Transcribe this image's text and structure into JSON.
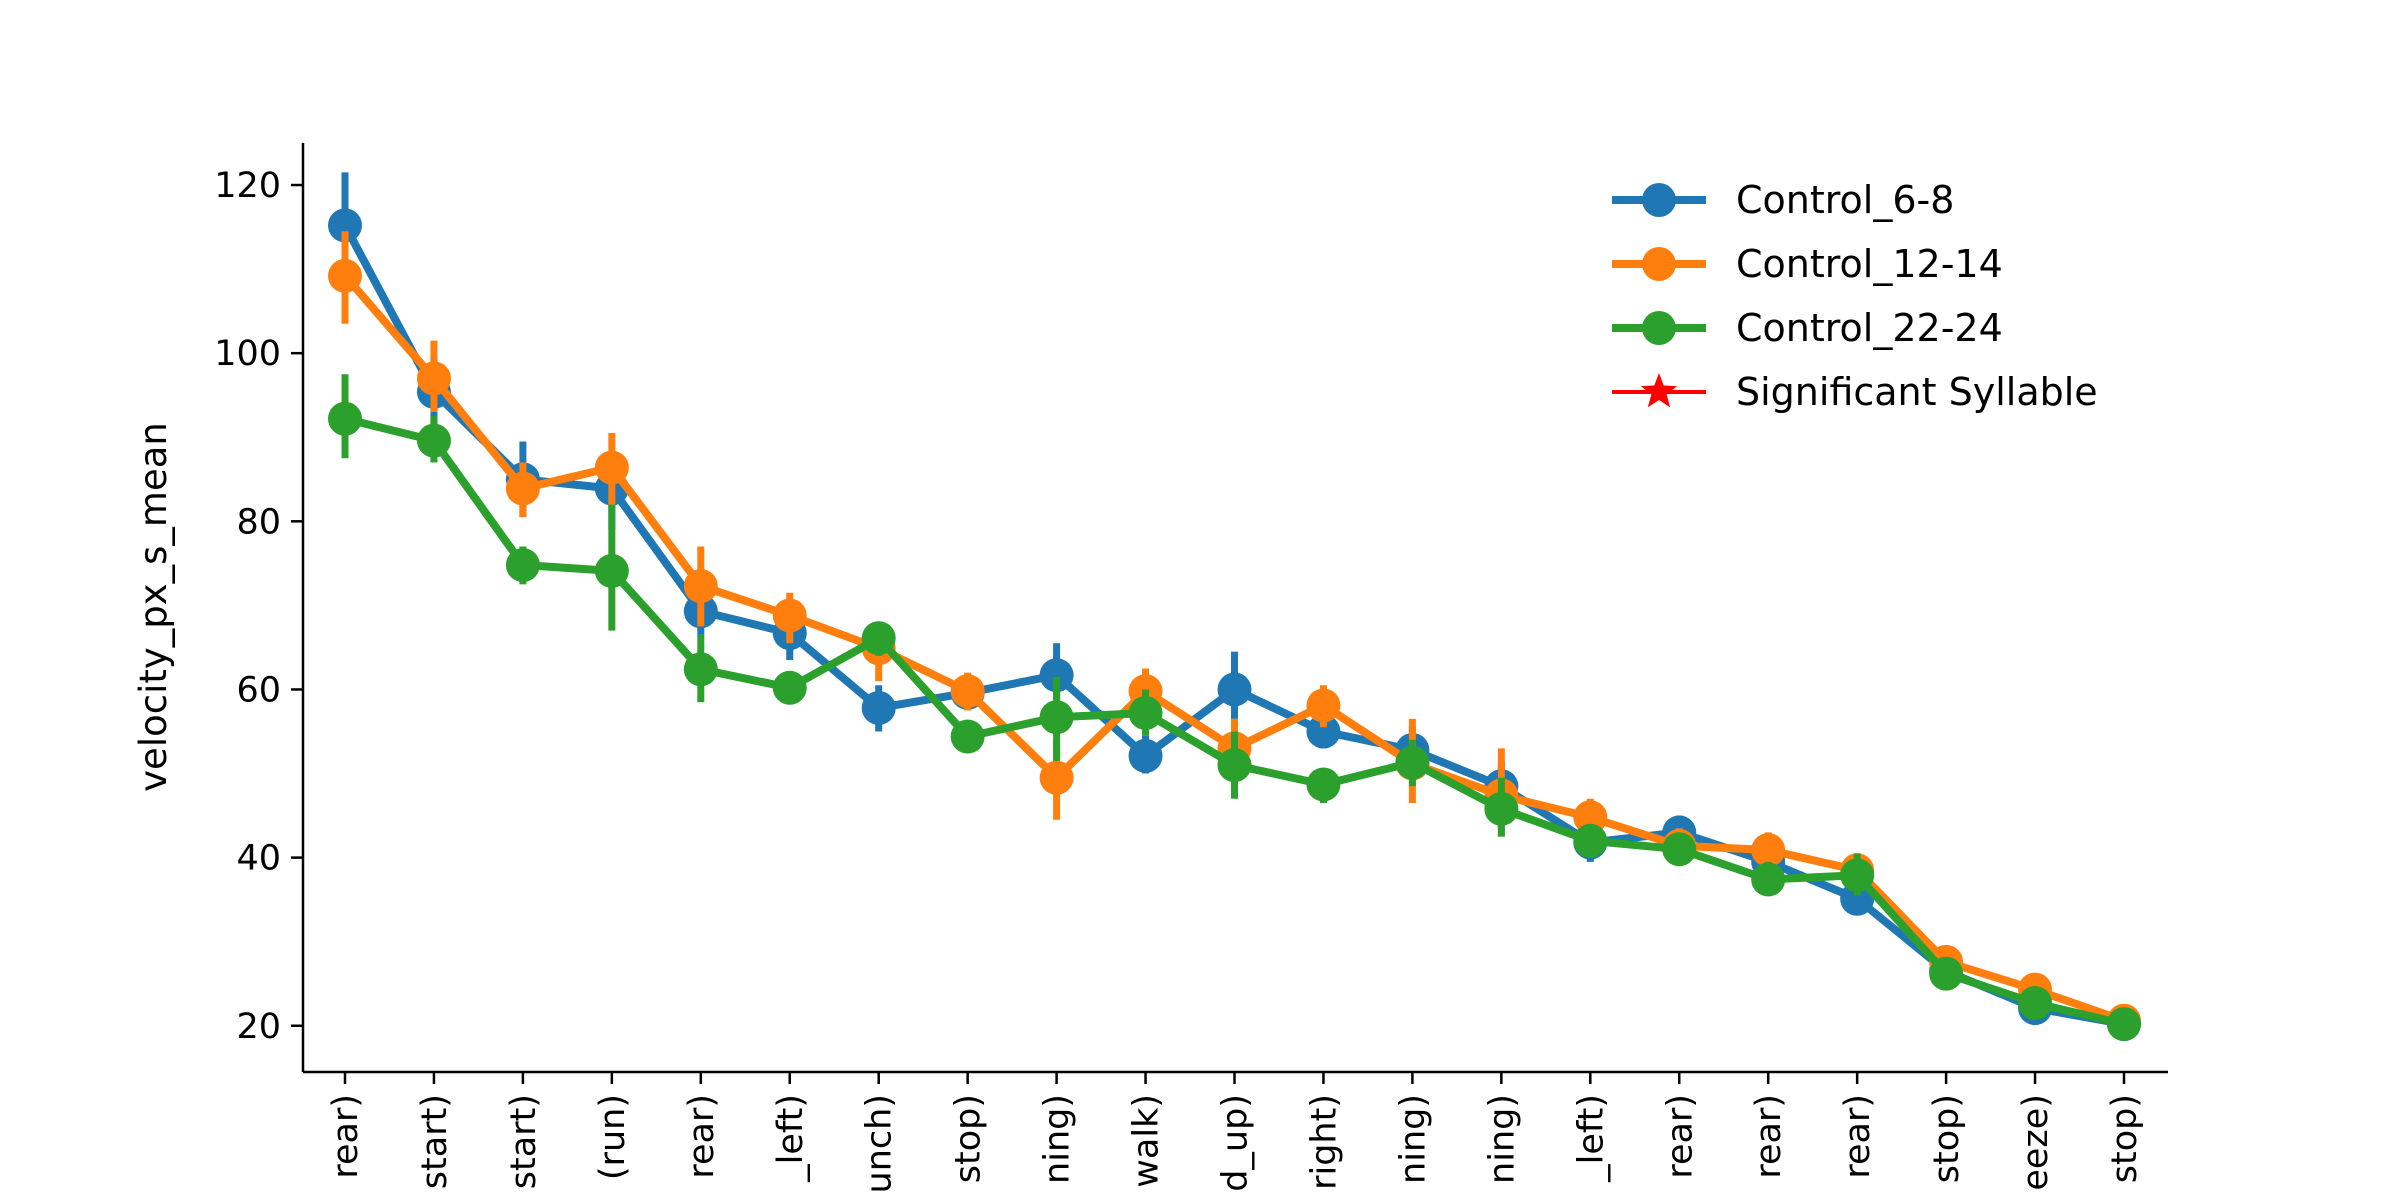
{
  "chart_data": {
    "type": "line",
    "ylabel": "velocity_px_s_mean",
    "xlabel": "",
    "ylim": [
      14.5,
      125
    ],
    "yticks": [
      20,
      40,
      60,
      80,
      100,
      120
    ],
    "grid": false,
    "legend_position": "top-right",
    "categories": [
      "rear)",
      "start)",
      "start)",
      "(run)",
      "rear)",
      "_left)",
      "unch)",
      "stop)",
      "ning)",
      "walk)",
      "d_up)",
      "right)",
      "ning)",
      "ning)",
      "_left)",
      "rear)",
      "rear)",
      "rear)",
      "stop)",
      "eeze)",
      "stop)"
    ],
    "series": [
      {
        "name": "Control_6-8",
        "color": "#1f77b4",
        "values": [
          115.2,
          95.4,
          85.0,
          83.9,
          69.3,
          66.7,
          57.8,
          59.6,
          61.7,
          52.1,
          60.0,
          55.0,
          52.8,
          48.5,
          41.8,
          43.0,
          39.5,
          35.1,
          26.5,
          22.1,
          20.2
        ],
        "err_low": [
          110.0,
          91.0,
          80.5,
          79.0,
          66.5,
          63.5,
          55.0,
          57.5,
          58.5,
          50.0,
          56.5,
          53.0,
          50.0,
          45.5,
          39.5,
          41.0,
          37.5,
          33.5,
          25.0,
          21.0,
          19.3
        ],
        "err_high": [
          121.5,
          99.5,
          89.5,
          87.5,
          72.5,
          69.5,
          60.5,
          61.5,
          65.5,
          54.5,
          64.5,
          57.0,
          55.5,
          51.5,
          44.0,
          45.0,
          41.5,
          37.0,
          28.0,
          23.5,
          21.2
        ]
      },
      {
        "name": "Control_12-14",
        "color": "#ff7f0e",
        "values": [
          109.2,
          97.0,
          83.9,
          86.4,
          72.3,
          68.8,
          64.9,
          59.8,
          49.5,
          59.8,
          53.0,
          58.1,
          51.2,
          47.4,
          44.8,
          41.4,
          40.9,
          38.5,
          27.6,
          24.3,
          20.6
        ],
        "err_low": [
          103.5,
          93.0,
          80.5,
          82.0,
          67.5,
          65.5,
          61.0,
          57.5,
          44.5,
          57.0,
          50.0,
          55.5,
          46.5,
          42.5,
          42.5,
          39.5,
          38.5,
          36.5,
          26.0,
          23.0,
          19.5
        ],
        "err_high": [
          114.5,
          101.5,
          87.0,
          90.5,
          77.0,
          71.5,
          68.0,
          62.0,
          54.0,
          62.5,
          56.5,
          60.5,
          56.5,
          53.0,
          47.0,
          43.5,
          43.0,
          40.5,
          29.0,
          25.5,
          21.8
        ]
      },
      {
        "name": "Control_22-24",
        "color": "#2ca02c",
        "values": [
          92.2,
          89.6,
          74.8,
          74.1,
          62.4,
          60.2,
          66.1,
          54.4,
          56.7,
          57.2,
          51.0,
          48.7,
          51.3,
          45.8,
          42.0,
          41.0,
          37.4,
          37.9,
          26.2,
          22.7,
          20.2
        ],
        "err_low": [
          87.5,
          87.0,
          72.5,
          67.0,
          58.5,
          58.5,
          64.0,
          52.5,
          51.5,
          54.5,
          47.0,
          46.5,
          48.5,
          42.5,
          40.5,
          39.5,
          35.5,
          35.5,
          24.5,
          21.5,
          19.2
        ],
        "err_high": [
          97.5,
          92.5,
          77.0,
          82.0,
          66.5,
          62.0,
          68.0,
          56.0,
          61.5,
          60.0,
          55.0,
          50.5,
          54.0,
          49.5,
          44.0,
          42.5,
          39.5,
          40.5,
          27.5,
          24.0,
          21.2
        ]
      }
    ],
    "legend_entries": [
      {
        "label": "Control_6-8",
        "color": "#1f77b4",
        "marker": "circle"
      },
      {
        "label": "Control_12-14",
        "color": "#ff7f0e",
        "marker": "circle"
      },
      {
        "label": "Control_22-24",
        "color": "#2ca02c",
        "marker": "circle"
      },
      {
        "label": "Significant Syllable",
        "color": "#ff0000",
        "marker": "star"
      }
    ]
  }
}
